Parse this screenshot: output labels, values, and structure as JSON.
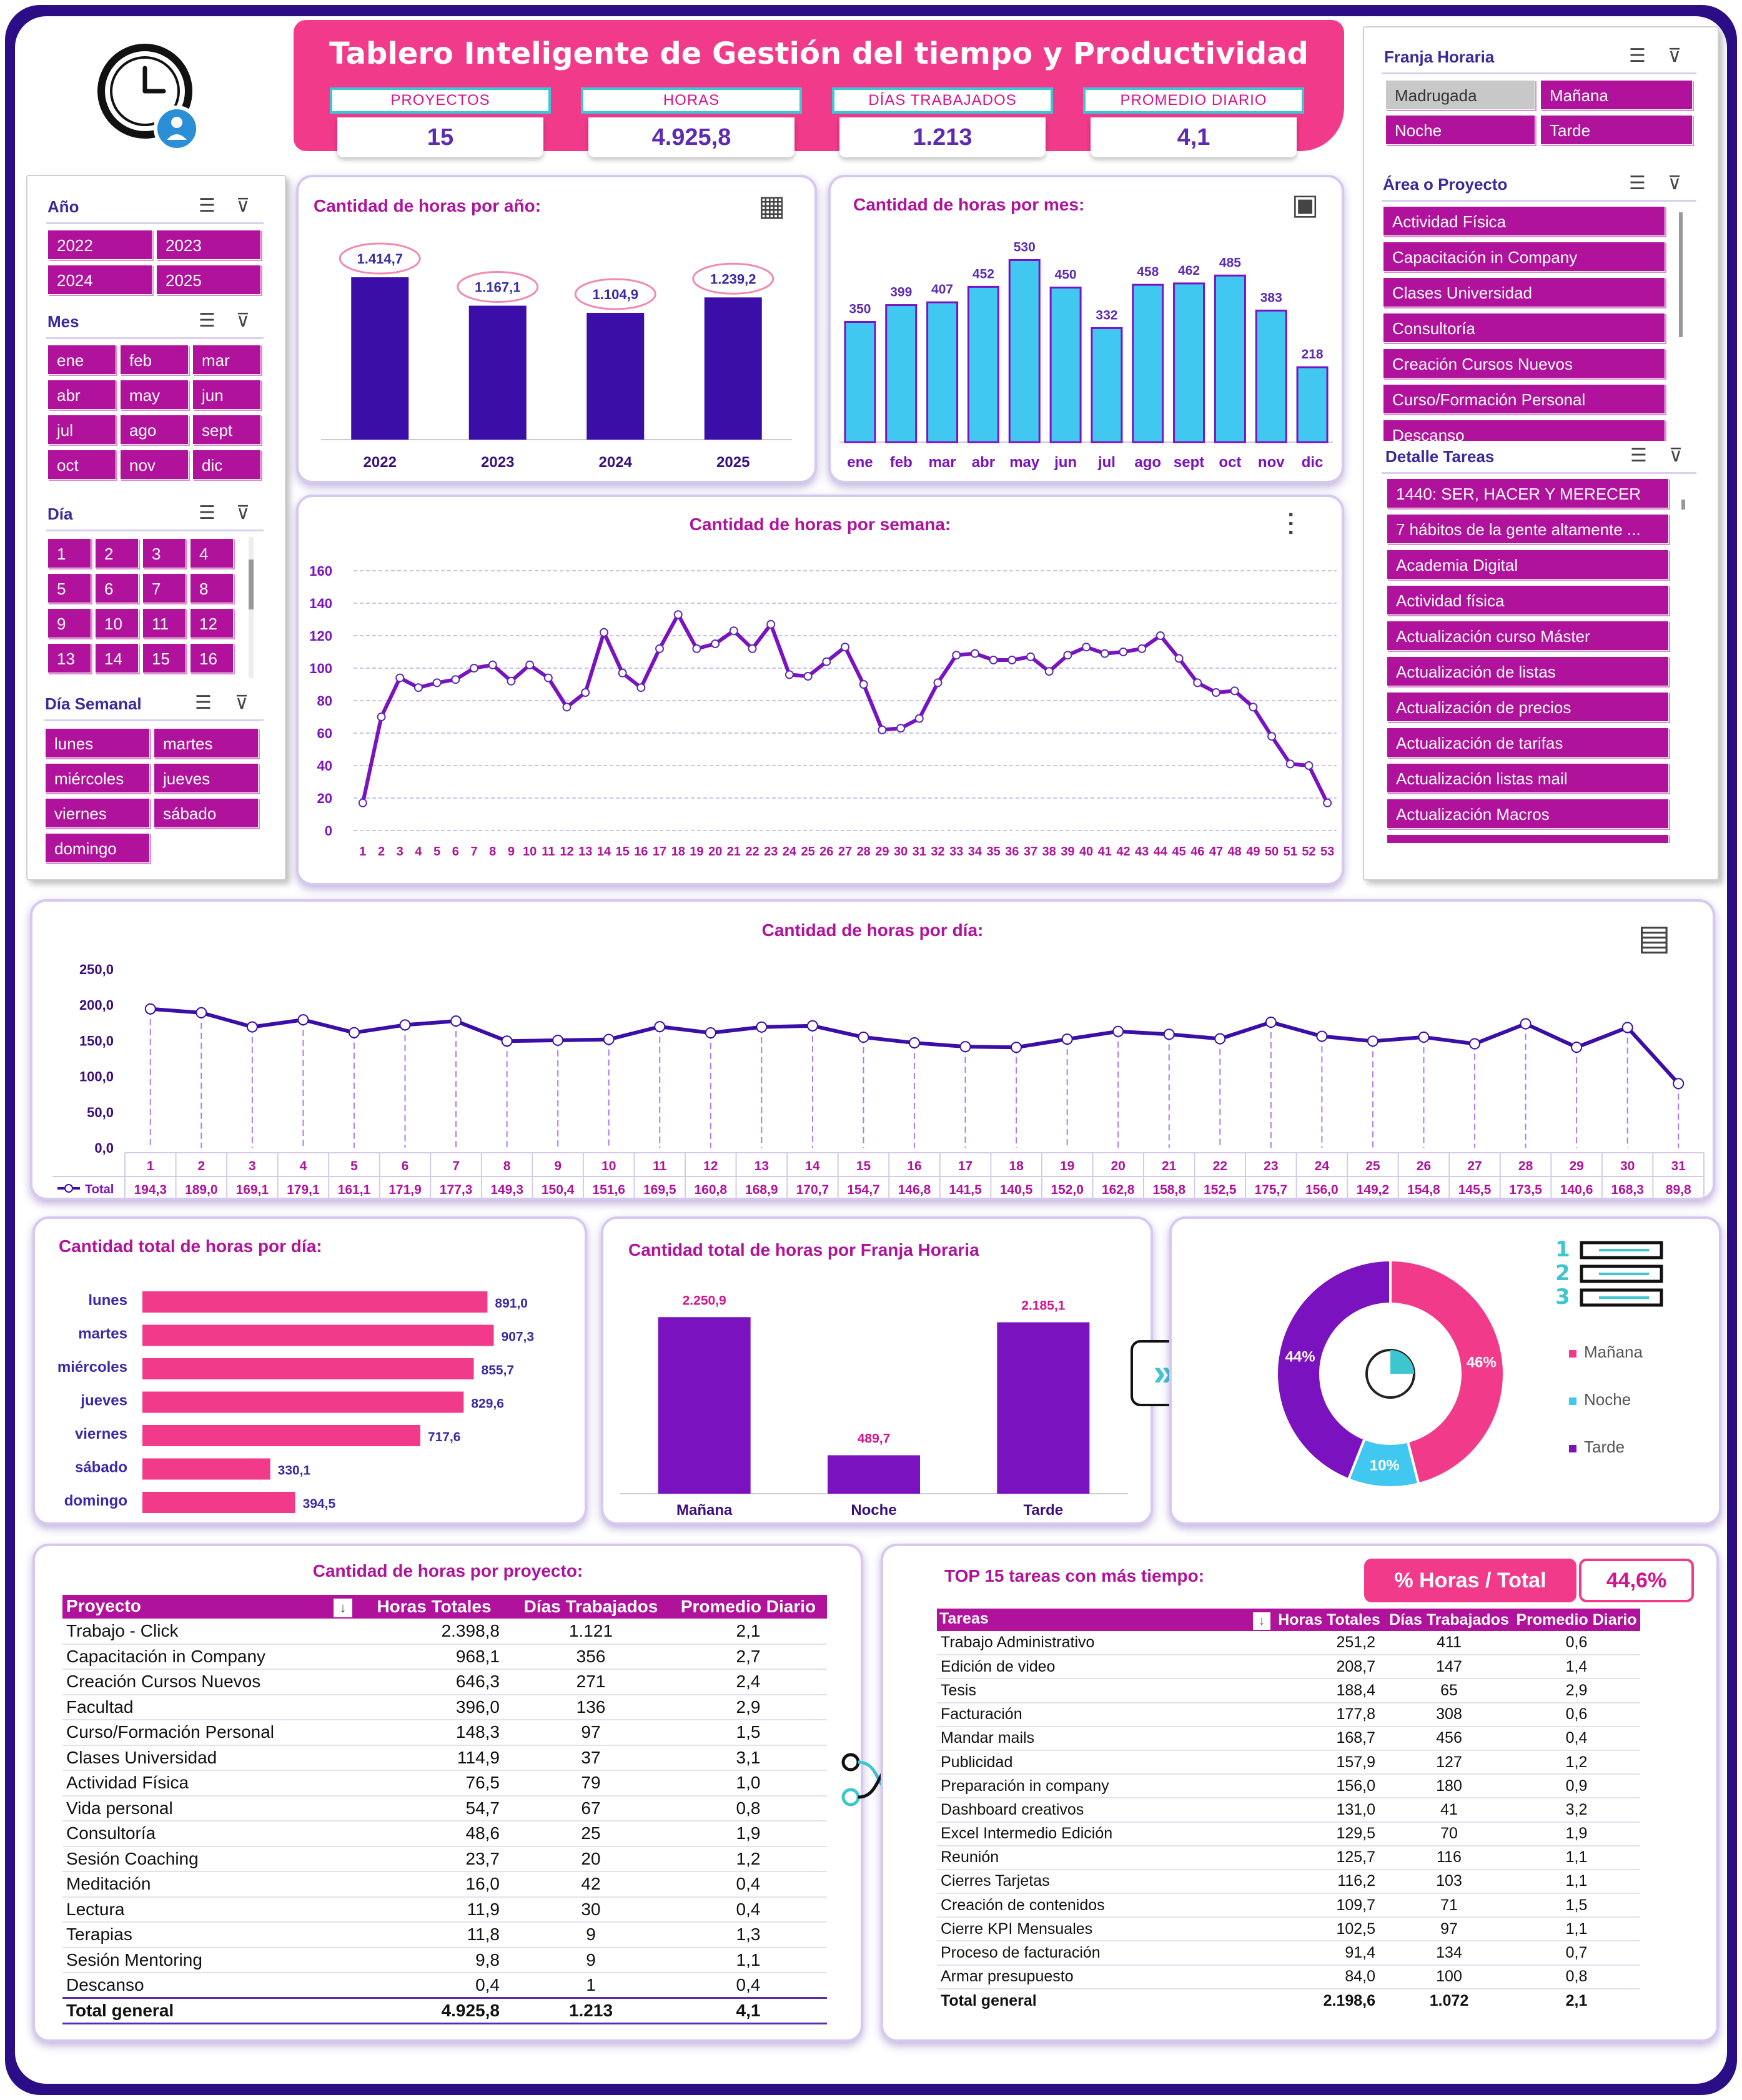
{
  "title": "Tablero Inteligente de Gestión del tiempo y Productividad",
  "kpis": [
    {
      "label": "PROYECTOS",
      "value": "15"
    },
    {
      "label": "HORAS",
      "value": "4.925,8"
    },
    {
      "label": "DÍAS TRABAJADOS",
      "value": "1.213"
    },
    {
      "label": "PROMEDIO DIARIO",
      "value": "4,1"
    }
  ],
  "colors": {
    "magenta": "#b0129b",
    "pink": "#f23a8a",
    "purple": "#3b0ea8",
    "violet": "#7a12c0",
    "cyan": "#41c8f0",
    "frame": "#2b0d86"
  },
  "slicers": {
    "anio": {
      "label": "Año",
      "items": [
        "2022",
        "2023",
        "2024",
        "2025"
      ]
    },
    "mes": {
      "label": "Mes",
      "items": [
        "ene",
        "feb",
        "mar",
        "abr",
        "may",
        "jun",
        "jul",
        "ago",
        "sept",
        "oct",
        "nov",
        "dic"
      ]
    },
    "dia": {
      "label": "Día",
      "items": [
        "1",
        "2",
        "3",
        "4",
        "5",
        "6",
        "7",
        "8",
        "9",
        "10",
        "11",
        "12",
        "13",
        "14",
        "15",
        "16"
      ]
    },
    "dia_semanal": {
      "label": "Día Semanal",
      "items": [
        "lunes",
        "martes",
        "miércoles",
        "jueves",
        "viernes",
        "sábado",
        "domingo"
      ]
    },
    "franja": {
      "label": "Franja Horaria",
      "items": [
        "Madrugada",
        "Mañana",
        "Noche",
        "Tarde"
      ]
    },
    "area": {
      "label": "Área o Proyecto",
      "items": [
        "Actividad Física",
        "Capacitación in Company",
        "Clases Universidad",
        "Consultoría",
        "Creación Cursos Nuevos",
        "Curso/Formación Personal",
        "Descanso"
      ]
    },
    "detalle": {
      "label": "Detalle Tareas",
      "items": [
        "1440: SER, HACER Y MERECER",
        "7 hábitos de la gente altamente ...",
        "Academia Digital",
        "Actividad física",
        "Actualización curso Máster",
        "Actualización de listas",
        "Actualización de precios",
        "Actualización de tarifas",
        "Actualización listas mail",
        "Actualización Macros"
      ]
    }
  },
  "chart_data": [
    {
      "id": "por_anio",
      "type": "bar",
      "title": "Cantidad de horas por año:",
      "categories": [
        "2022",
        "2023",
        "2024",
        "2025"
      ],
      "values": [
        1414.7,
        1167.1,
        1104.9,
        1239.2
      ],
      "labels": [
        "1.414,7",
        "1.167,1",
        "1.104,9",
        "1.239,2"
      ],
      "ylim": [
        0,
        1600
      ]
    },
    {
      "id": "por_mes",
      "type": "bar",
      "title": "Cantidad de horas por mes:",
      "categories": [
        "ene",
        "feb",
        "mar",
        "abr",
        "may",
        "jun",
        "jul",
        "ago",
        "sept",
        "oct",
        "nov",
        "dic"
      ],
      "values": [
        350,
        399,
        407,
        452,
        530,
        450,
        332,
        458,
        462,
        485,
        383,
        218
      ],
      "ylim": [
        0,
        560
      ]
    },
    {
      "id": "por_semana",
      "type": "line",
      "title": "Cantidad de horas por semana:",
      "x": [
        "1",
        "2",
        "3",
        "4",
        "5",
        "6",
        "7",
        "8",
        "9",
        "10",
        "11",
        "12",
        "13",
        "14",
        "15",
        "16",
        "17",
        "18",
        "19",
        "20",
        "21",
        "22",
        "23",
        "24",
        "25",
        "26",
        "27",
        "28",
        "29",
        "30",
        "31",
        "32",
        "33",
        "34",
        "35",
        "36",
        "37",
        "38",
        "39",
        "40",
        "41",
        "42",
        "43",
        "44",
        "45",
        "46",
        "47",
        "48",
        "49",
        "50",
        "51",
        "52",
        "53"
      ],
      "values": [
        17,
        70,
        94,
        88,
        91,
        93,
        100,
        102,
        92,
        102,
        94,
        76,
        85,
        122,
        97,
        88,
        112,
        133,
        112,
        115,
        123,
        112,
        127,
        96,
        95,
        104,
        113,
        90,
        62,
        63,
        69,
        91,
        108,
        109,
        105,
        105,
        107,
        98,
        108,
        113,
        109,
        110,
        112,
        120,
        106,
        91,
        85,
        86,
        76,
        58,
        41,
        40,
        17
      ],
      "ylim": [
        0,
        160
      ],
      "yticks": [
        "0",
        "20",
        "40",
        "60",
        "80",
        "100",
        "120",
        "140",
        "160"
      ]
    },
    {
      "id": "por_dia",
      "type": "line",
      "title": "Cantidad de horas por día:",
      "series_name": "Total",
      "x": [
        "1",
        "2",
        "3",
        "4",
        "5",
        "6",
        "7",
        "8",
        "9",
        "10",
        "11",
        "12",
        "13",
        "14",
        "15",
        "16",
        "17",
        "18",
        "19",
        "20",
        "21",
        "22",
        "23",
        "24",
        "25",
        "26",
        "27",
        "28",
        "29",
        "30",
        "31"
      ],
      "values": [
        194.3,
        189.0,
        169.1,
        179.1,
        161.1,
        171.9,
        177.3,
        149.3,
        150.4,
        151.6,
        169.5,
        160.8,
        168.9,
        170.7,
        154.7,
        146.8,
        141.5,
        140.5,
        152.0,
        162.8,
        158.8,
        152.5,
        175.7,
        156.0,
        149.2,
        154.8,
        145.5,
        173.5,
        140.6,
        168.3,
        89.8
      ],
      "labels": [
        "194,3",
        "189,0",
        "169,1",
        "179,1",
        "161,1",
        "171,9",
        "177,3",
        "149,3",
        "150,4",
        "151,6",
        "169,5",
        "160,8",
        "168,9",
        "170,7",
        "154,7",
        "146,8",
        "141,5",
        "140,5",
        "152,0",
        "162,8",
        "158,8",
        "152,5",
        "175,7",
        "156,0",
        "149,2",
        "154,8",
        "145,5",
        "173,5",
        "140,6",
        "168,3",
        "89,8"
      ],
      "ylim": [
        0,
        250
      ],
      "yticks": [
        "0,0",
        "50,0",
        "100,0",
        "150,0",
        "200,0",
        "250,0"
      ]
    },
    {
      "id": "total_dia",
      "type": "bar",
      "orientation": "horizontal",
      "title": "Cantidad total de horas por día:",
      "categories": [
        "lunes",
        "martes",
        "miércoles",
        "jueves",
        "viernes",
        "sábado",
        "domingo"
      ],
      "values": [
        891.0,
        907.3,
        855.7,
        829.6,
        717.6,
        330.1,
        394.5
      ],
      "labels": [
        "891,0",
        "907,3",
        "855,7",
        "829,6",
        "717,6",
        "330,1",
        "394,5"
      ],
      "xlim": [
        0,
        1000
      ]
    },
    {
      "id": "total_franja",
      "type": "bar",
      "title": "Cantidad total de horas por Franja Horaria",
      "categories": [
        "Mañana",
        "Noche",
        "Tarde"
      ],
      "values": [
        2250.9,
        489.7,
        2185.1
      ],
      "labels": [
        "2.250,9",
        "489,7",
        "2.185,1"
      ],
      "ylim": [
        0,
        2500
      ]
    },
    {
      "id": "franja_pct",
      "type": "pie",
      "categories": [
        "Mañana",
        "Noche",
        "Tarde"
      ],
      "values": [
        46,
        10,
        44
      ],
      "labels": [
        "46%",
        "10%",
        "44%"
      ],
      "legend": [
        "Mañana",
        "Noche",
        "Tarde"
      ]
    }
  ],
  "proyectos": {
    "title": "Cantidad de horas por proyecto:",
    "headers": [
      "Proyecto",
      "Horas Totales",
      "Días Trabajados",
      "Promedio Diario"
    ],
    "rows": [
      [
        "Trabajo - Click",
        "2.398,8",
        "1.121",
        "2,1"
      ],
      [
        "Capacitación in Company",
        "968,1",
        "356",
        "2,7"
      ],
      [
        "Creación Cursos Nuevos",
        "646,3",
        "271",
        "2,4"
      ],
      [
        "Facultad",
        "396,0",
        "136",
        "2,9"
      ],
      [
        "Curso/Formación Personal",
        "148,3",
        "97",
        "1,5"
      ],
      [
        "Clases Universidad",
        "114,9",
        "37",
        "3,1"
      ],
      [
        "Actividad Física",
        "76,5",
        "79",
        "1,0"
      ],
      [
        "Vida personal",
        "54,7",
        "67",
        "0,8"
      ],
      [
        "Consultoría",
        "48,6",
        "25",
        "1,9"
      ],
      [
        "Sesión Coaching",
        "23,7",
        "20",
        "1,2"
      ],
      [
        "Meditación",
        "16,0",
        "42",
        "0,4"
      ],
      [
        "Lectura",
        "11,9",
        "30",
        "0,4"
      ],
      [
        "Terapias",
        "11,8",
        "9",
        "1,3"
      ],
      [
        "Sesión Mentoring",
        "9,8",
        "9",
        "1,1"
      ],
      [
        "Descanso",
        "0,4",
        "1",
        "0,4"
      ]
    ],
    "total": [
      "Total general",
      "4.925,8",
      "1.213",
      "4,1"
    ]
  },
  "tareas": {
    "title": "TOP 15 tareas con más tiempo:",
    "pct_label": "% Horas / Total",
    "pct_value": "44,6%",
    "headers": [
      "Tareas",
      "Horas Totales",
      "Días Trabajados",
      "Promedio Diario"
    ],
    "rows": [
      [
        "Trabajo Administrativo",
        "251,2",
        "411",
        "0,6"
      ],
      [
        "Edición de video",
        "208,7",
        "147",
        "1,4"
      ],
      [
        "Tesis",
        "188,4",
        "65",
        "2,9"
      ],
      [
        "Facturación",
        "177,8",
        "308",
        "0,6"
      ],
      [
        "Mandar mails",
        "168,7",
        "456",
        "0,4"
      ],
      [
        "Publicidad",
        "157,9",
        "127",
        "1,2"
      ],
      [
        "Preparación in company",
        "156,0",
        "180",
        "0,9"
      ],
      [
        "Dashboard creativos",
        "131,0",
        "41",
        "3,2"
      ],
      [
        "Excel Intermedio Edición",
        "129,5",
        "70",
        "1,9"
      ],
      [
        "Reunión",
        "125,7",
        "116",
        "1,1"
      ],
      [
        "Cierres Tarjetas",
        "116,2",
        "103",
        "1,1"
      ],
      [
        "Creación de contenidos",
        "109,7",
        "71",
        "1,5"
      ],
      [
        "Cierre KPI Mensuales",
        "102,5",
        "97",
        "1,1"
      ],
      [
        "Proceso de facturación",
        "91,4",
        "134",
        "0,7"
      ],
      [
        "Armar presupuesto",
        "84,0",
        "100",
        "0,8"
      ]
    ],
    "total": [
      "Total general",
      "2.198,6",
      "1.072",
      "2,1"
    ]
  }
}
